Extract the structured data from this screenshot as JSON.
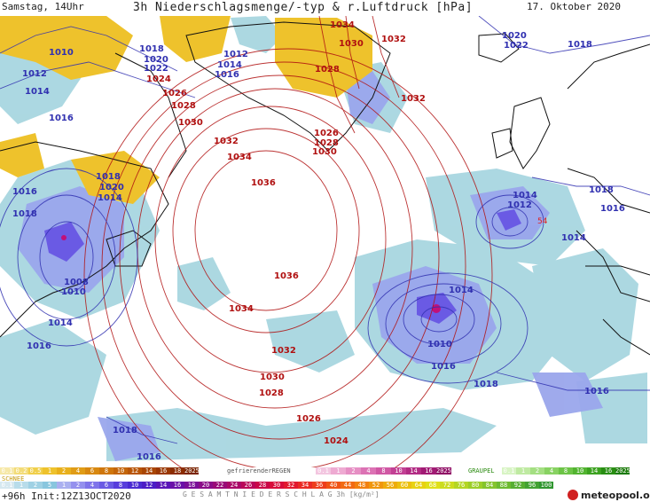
{
  "header": {
    "left": "Samstag, 14Uhr",
    "title": "3h Niederschlagsmenge/-typ & r.Luftdruck [hPa]",
    "right": "17. Oktober 2020"
  },
  "footer": {
    "init": "+96h  Init:12Z13OCT2020",
    "scale_caption": "G E S A M T N I E D E R S C H L A G   3h  [kg/m²]",
    "brand": "meteopool.org"
  },
  "legend": {
    "snow_label": "SCHNEE",
    "freezing_label": "gefrierenderREGEN",
    "graupel_label": "GRAUPEL",
    "snow_values": [
      "0.1",
      "0.2",
      "0.5",
      "1",
      "2",
      "4",
      "6",
      "8",
      "10",
      "12",
      "14",
      "16",
      "18",
      "2025+"
    ],
    "freezing_values": [
      "0.1",
      "1",
      "2",
      "4",
      "8",
      "10",
      "14",
      "16",
      "2025+"
    ],
    "graupel_values": [
      "0.1",
      "1",
      "2",
      "4",
      "8",
      "10",
      "14",
      "16",
      "2025+"
    ],
    "total_values": [
      "0.1",
      "1",
      "2",
      "5",
      "1",
      "2",
      "4",
      "6",
      "8",
      "10",
      "12",
      "14",
      "16",
      "18",
      "20",
      "22",
      "24",
      "26",
      "28",
      "30",
      "32",
      "34",
      "36",
      "40",
      "44",
      "48",
      "52",
      "56",
      "60",
      "64",
      "68",
      "72",
      "76",
      "80",
      "84",
      "88",
      "92",
      "96",
      "100"
    ],
    "colors": {
      "snow": [
        "#f6e8a8",
        "#f3dc78",
        "#f0cf4a",
        "#eec22c",
        "#e8b01c",
        "#e09c16",
        "#d88810",
        "#cf760c",
        "#c46508",
        "#b85506",
        "#a94604",
        "#9a3803",
        "#8b2c02",
        "#7a2301"
      ],
      "freezing": [
        "#f3c6e0",
        "#eeaad2",
        "#e68fc4",
        "#dc72b4",
        "#d058a4",
        "#c24094",
        "#b22c84",
        "#a11a74",
        "#8f0c64"
      ],
      "graupel": [
        "#d8f4c4",
        "#bfeaa2",
        "#a4df82",
        "#88d262",
        "#6cc446",
        "#52b430",
        "#3ca220",
        "#288e12",
        "#1a7a08"
      ],
      "total": [
        "#d6e8f0",
        "#b8dcea",
        "#9fd1e4",
        "#88c6de",
        "#aab0f0",
        "#9490ee",
        "#7f74ea",
        "#6a5ae4",
        "#583edc",
        "#4a2ad2",
        "#4c1cc6",
        "#5a14b8",
        "#6a10a8",
        "#7a0e98",
        "#8a0c88",
        "#9a0a78",
        "#aa0868",
        "#ba0658",
        "#ca0648",
        "#d80c3a",
        "#e2182e",
        "#ea2a24",
        "#ee3e1c",
        "#f05416",
        "#f26a12",
        "#f2800e",
        "#f0960c",
        "#eeac0c",
        "#ecc00e",
        "#e8d212",
        "#e0e018",
        "#ccdc1e",
        "#b4d624",
        "#9cce28",
        "#84c42c",
        "#6cba30",
        "#56ae32",
        "#42a232",
        "#309630"
      ]
    }
  },
  "pressure_labels_red": [
    "1034",
    "1030",
    "1032",
    "1028",
    "1032",
    "1024",
    "1026",
    "1028",
    "1030",
    "1026",
    "1028",
    "1030",
    "1032",
    "1034",
    "1036",
    "1036",
    "1034",
    "1032",
    "1030",
    "1028",
    "1026",
    "1024"
  ],
  "pressure_labels_blue": [
    "1010",
    "1018",
    "1020",
    "1022",
    "1012",
    "1014",
    "1016",
    "1012",
    "1014",
    "1016",
    "1020",
    "1022",
    "1018",
    "1016",
    "1018",
    "1020",
    "1018",
    "1014",
    "1008",
    "1010",
    "1014",
    "1016",
    "1014",
    "1012",
    "1018",
    "1016",
    "1014",
    "1014",
    "1010",
    "1016",
    "1018",
    "1016",
    "1018",
    "1016"
  ],
  "markers": {
    "low_center": "54"
  },
  "colors": {
    "isobar_red": "#b01010",
    "isobar_blue": "#3030b0",
    "land": "#ffffff",
    "coast": "#111111",
    "rain_light": "#a8d6e0",
    "rain_medium": "#8fa6ec",
    "rain_heavy": "#6a5ae4",
    "snow": "#eec22c"
  }
}
